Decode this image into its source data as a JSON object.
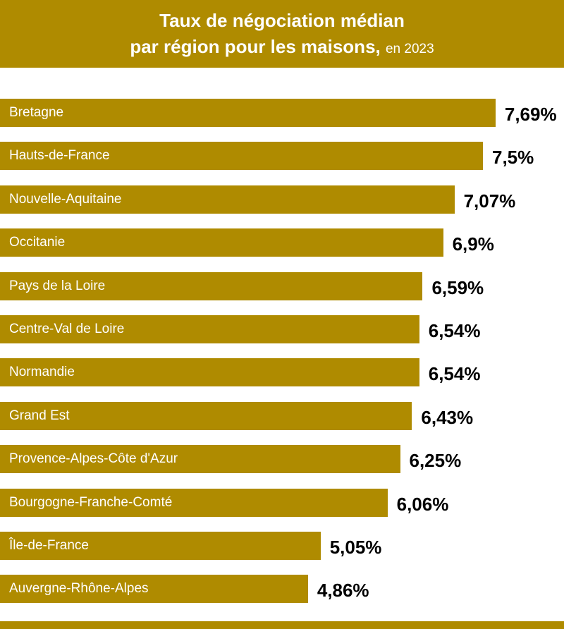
{
  "chart_data": {
    "type": "bar",
    "orientation": "horizontal",
    "title": "Taux de négociation médian",
    "title_line2": "par région pour les maisons,",
    "subtitle": "en 2023",
    "categories": [
      "Bretagne",
      "Hauts-de-France",
      "Nouvelle-Aquitaine",
      "Occitanie",
      "Pays de la Loire",
      "Centre-Val de Loire",
      "Normandie",
      "Grand Est",
      "Provence-Alpes-Côte d'Azur",
      "Bourgogne-Franche-Comté",
      "Île-de-France",
      "Auvergne-Rhône-Alpes"
    ],
    "values": [
      7.69,
      7.5,
      7.07,
      6.9,
      6.59,
      6.54,
      6.54,
      6.43,
      6.25,
      6.06,
      5.05,
      4.86
    ],
    "value_labels": [
      "7,69%",
      "7,5%",
      "7,07%",
      "6,9%",
      "6,59%",
      "6,54%",
      "6,54%",
      "6,43%",
      "6,25%",
      "6,06%",
      "5,05%",
      "4,86%"
    ],
    "unit": "%",
    "grid": false,
    "bar_color": "#AF8B00"
  }
}
